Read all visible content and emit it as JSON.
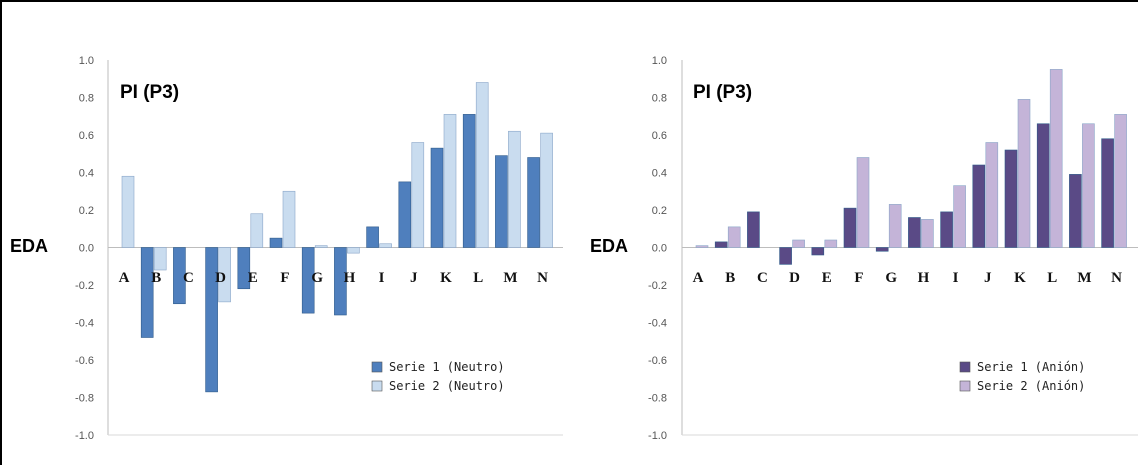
{
  "chart_data": [
    {
      "type": "bar",
      "title": "PI (P3)",
      "ylabel": "EDA",
      "ylim": [
        -1.0,
        1.0
      ],
      "yticks": [
        "1.0",
        "0.8",
        "0.6",
        "0.4",
        "0.2",
        "0.0",
        "-0.2",
        "-0.4",
        "-0.6",
        "-0.8",
        "-1.0"
      ],
      "categories": [
        "A",
        "B",
        "C",
        "D",
        "E",
        "F",
        "G",
        "H",
        "I",
        "J",
        "K",
        "L",
        "M",
        "N"
      ],
      "series": [
        {
          "name": "Serie 1 (Neutro)",
          "color": "#4f7fbd",
          "values": [
            0.0,
            -0.48,
            -0.3,
            -0.77,
            -0.22,
            0.05,
            -0.35,
            -0.36,
            0.11,
            0.35,
            0.53,
            0.71,
            0.49,
            0.48
          ]
        },
        {
          "name": "Serie 2 (Neutro)",
          "color": "#c9dcef",
          "values": [
            0.38,
            -0.12,
            0.0,
            -0.29,
            0.18,
            0.3,
            0.01,
            -0.03,
            0.02,
            0.56,
            0.71,
            0.88,
            0.62,
            0.61
          ]
        }
      ],
      "legend_position": "bottom-right",
      "grid": false
    },
    {
      "type": "bar",
      "title": "PI (P3)",
      "ylabel": "EDA",
      "ylim": [
        -1.0,
        1.0
      ],
      "yticks": [
        "1.0",
        "0.8",
        "0.6",
        "0.4",
        "0.2",
        "0.0",
        "-0.2",
        "-0.4",
        "-0.6",
        "-0.8",
        "-1.0"
      ],
      "categories": [
        "A",
        "B",
        "C",
        "D",
        "E",
        "F",
        "G",
        "H",
        "I",
        "J",
        "K",
        "L",
        "M",
        "N"
      ],
      "series": [
        {
          "name": "Serie 1 (Anión)",
          "color": "#5a4a86",
          "values": [
            0.0,
            0.03,
            0.19,
            -0.09,
            -0.04,
            0.21,
            -0.02,
            0.16,
            0.19,
            0.44,
            0.52,
            0.66,
            0.39,
            0.58
          ]
        },
        {
          "name": "Serie 2 (Anión)",
          "color": "#c4b4d8",
          "values": [
            0.01,
            0.11,
            0.0,
            0.04,
            0.04,
            0.48,
            0.23,
            0.15,
            0.33,
            0.56,
            0.79,
            0.95,
            0.66,
            0.71
          ]
        }
      ],
      "legend_position": "bottom-right",
      "grid": false
    }
  ]
}
